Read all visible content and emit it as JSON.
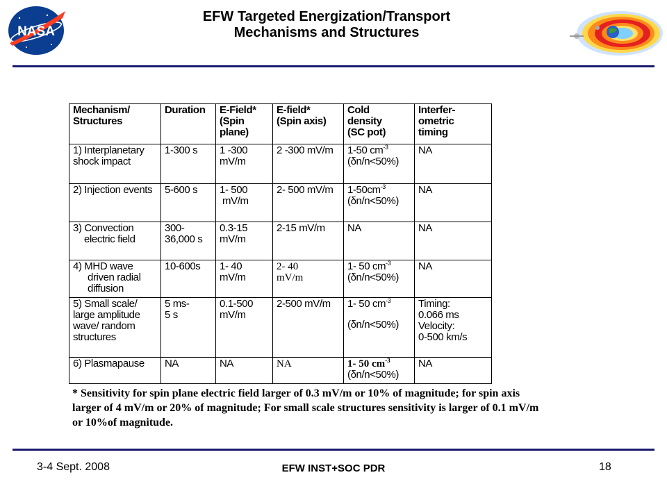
{
  "header": {
    "title_line1": "EFW Targeted Energization/Transport",
    "title_line2": "Mechanisms and Structures",
    "logo_text": "NASA"
  },
  "table": {
    "headers": [
      [
        "Mechanism/",
        "Structures"
      ],
      [
        "Duration"
      ],
      [
        "E-Field*",
        "(Spin",
        "plane)"
      ],
      [
        "E-field*",
        "(Spin axis)"
      ],
      [
        "Cold",
        "density",
        "(SC pot)"
      ],
      [
        "Interfer-",
        "ometric",
        "timing"
      ]
    ],
    "rows": [
      {
        "mechanism": [
          "1) Interplanetary",
          "shock impact"
        ],
        "duration": [
          "1-300 s"
        ],
        "efield_spin": [
          "1 -300",
          "mV/m"
        ],
        "efield_axis": [
          "2 -300 mV/m"
        ],
        "density": [
          "1-50 cm",
          "(δn/n<50%)"
        ],
        "timing": [
          "NA"
        ]
      },
      {
        "mechanism": [
          "2) Injection events"
        ],
        "duration": [
          "5-600 s"
        ],
        "efield_spin": [
          "1- 500",
          "mV/m"
        ],
        "efield_axis": [
          "2- 500 mV/m"
        ],
        "density": [
          "1-50cm",
          "(δn/n<50%)"
        ],
        "timing": [
          "NA"
        ]
      },
      {
        "mechanism": [
          "3) Convection",
          "electric field"
        ],
        "duration": [
          "300-",
          "36,000 s"
        ],
        "efield_spin": [
          "0.3-15",
          "mV/m"
        ],
        "efield_axis": [
          "2-15 mV/m"
        ],
        "density": [
          "NA"
        ],
        "timing": [
          "NA"
        ]
      },
      {
        "mechanism": [
          "4) MHD wave",
          "driven radial",
          "diffusion"
        ],
        "duration": [
          "10-600s"
        ],
        "efield_spin": [
          "1- 40",
          "mV/m"
        ],
        "efield_axis": [
          "2- 40",
          "mV/m"
        ],
        "density": [
          "1- 50 cm",
          "(δn/n<50%)"
        ],
        "timing": [
          "NA"
        ]
      },
      {
        "mechanism": [
          "5) Small scale/",
          "large amplitude",
          "wave/ random",
          "structures"
        ],
        "duration": [
          "5 ms-",
          "5 s"
        ],
        "efield_spin": [
          "0.1-500",
          "mV/m"
        ],
        "efield_axis": [
          "2-500 mV/m"
        ],
        "density": [
          "1- 50 cm",
          "(δn/n<50%)"
        ],
        "timing": [
          "Timing:",
          "0.066 ms",
          "Velocity:",
          "0-500 km/s"
        ]
      },
      {
        "mechanism": [
          "6) Plasmapause"
        ],
        "duration": [
          "NA"
        ],
        "efield_spin": [
          "NA"
        ],
        "efield_axis": [
          "NA"
        ],
        "density": [
          "1- 50 cm",
          "(δn/n<50%)"
        ],
        "timing": [
          "NA"
        ]
      }
    ],
    "superscript": "-3"
  },
  "note": {
    "line1": "* Sensitivity for spin plane electric field larger of 0.3 mV/m or 10% of magnitude; for spin axis",
    "line2": "larger of 4 mV/m or 20% of magnitude; For small scale structures sensitivity is larger of  0.1 mV/m",
    "line3": "or 10%of magnitude."
  },
  "footer": {
    "date": "3-4 Sept. 2008",
    "center": "EFW INST+SOC PDR",
    "page": "18"
  },
  "colors": {
    "rule": "#1a1a70",
    "nasa_blue": "#0b3d91",
    "nasa_red": "#fc3d21"
  }
}
